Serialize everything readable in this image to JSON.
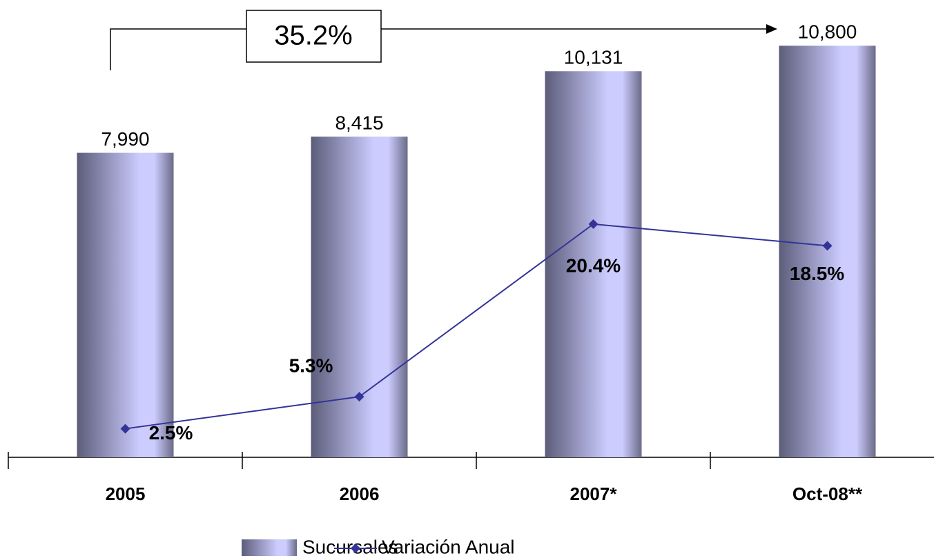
{
  "chart_data": {
    "type": "bar",
    "categories": [
      "2005",
      "2006",
      "2007*",
      "Oct-08**"
    ],
    "series": [
      {
        "name": "Sucursales",
        "color": "#ccccff",
        "values": [
          7990,
          8415,
          10131,
          10800
        ],
        "value_labels": [
          "7,990",
          "8,415",
          "10,131",
          "10,800"
        ]
      },
      {
        "name": "Variación Anual",
        "type": "line",
        "axis": "y2",
        "color": "#333399",
        "values": [
          2.5,
          5.3,
          20.4,
          18.5
        ],
        "value_labels": [
          "2.5%",
          "5.3%",
          "20.4%",
          "18.5%"
        ]
      }
    ],
    "ylim": [
      0,
      12000
    ],
    "y2lim": [
      0,
      40
    ],
    "annotation": "35.2%"
  }
}
